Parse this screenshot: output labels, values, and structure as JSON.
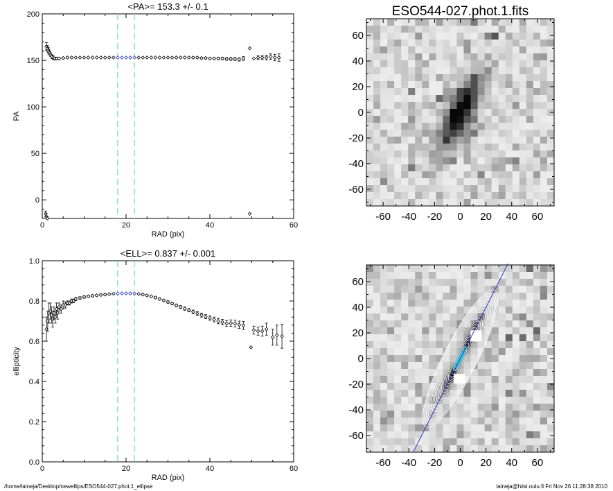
{
  "footer": {
    "path": "/home/laineja/Desktop/newellips/ESO544-027.phot.1_ellipse",
    "stamp": "laineja@hiisi.oulu.fi  Fri Nov 26 11:28:38 2010"
  },
  "colors": {
    "axes": "#000000",
    "marker": "#000000",
    "fit_marker": "#1f2fbf",
    "guide": "#7fe0e6",
    "contour": "#ffffff",
    "core": "#3ec8d8",
    "pa_line": "#3333cc"
  },
  "chart_data": [
    {
      "type": "scatter",
      "title": "<PA>= 153.3 +/-   0.1",
      "xlabel": "RAD (pix)",
      "ylabel": "PA",
      "xlim": [
        0,
        60
      ],
      "ylim": [
        -20,
        200
      ],
      "xticks": [
        "0",
        "20",
        "40",
        "60"
      ],
      "yticks": [
        "0",
        "50",
        "100",
        "150",
        "200"
      ],
      "guides_x": [
        18,
        22
      ],
      "series": [
        {
          "points": [
            [
              1.0,
              165,
              4
            ],
            [
              1.2,
              163,
              3
            ],
            [
              1.4,
              161,
              3
            ],
            [
              1.6,
              159,
              3
            ],
            [
              1.8,
              158,
              2
            ],
            [
              2.0,
              156,
              2
            ],
            [
              2.3,
              154,
              2
            ],
            [
              2.6,
              153,
              2
            ],
            [
              3.0,
              152,
              1.5
            ],
            [
              3.5,
              152,
              1
            ],
            [
              4,
              152,
              1
            ],
            [
              5,
              152.5,
              1
            ],
            [
              6,
              153,
              0.8
            ],
            [
              7,
              153,
              0.6
            ],
            [
              8,
              153,
              0.5
            ],
            [
              9,
              153,
              0.5
            ],
            [
              10,
              153,
              0.4
            ],
            [
              11,
              153,
              0.4
            ],
            [
              12,
              153,
              0.4
            ],
            [
              13,
              153,
              0.3
            ],
            [
              14,
              153,
              0.3
            ],
            [
              15,
              153,
              0.3
            ],
            [
              16,
              153,
              0.3
            ],
            [
              17,
              153,
              0.3
            ],
            [
              18,
              153,
              0.2
            ],
            [
              19,
              153,
              0.2
            ],
            [
              20,
              153,
              0.2
            ],
            [
              21,
              153,
              0.2
            ],
            [
              22,
              153,
              0.2
            ],
            [
              23,
              153,
              0.3
            ],
            [
              24,
              153,
              0.3
            ],
            [
              25,
              153,
              0.3
            ],
            [
              26,
              153,
              0.4
            ],
            [
              27,
              153,
              0.4
            ],
            [
              28,
              153,
              0.4
            ],
            [
              29,
              153,
              0.5
            ],
            [
              30,
              153,
              0.5
            ],
            [
              31,
              153,
              0.5
            ],
            [
              32,
              153,
              0.6
            ],
            [
              33,
              153,
              0.6
            ],
            [
              34,
              153,
              0.7
            ],
            [
              35,
              153,
              0.7
            ],
            [
              36,
              153,
              0.8
            ],
            [
              37,
              153,
              0.8
            ],
            [
              38,
              152.5,
              0.9
            ],
            [
              39,
              152.5,
              1
            ],
            [
              40,
              152,
              1
            ],
            [
              41,
              152,
              1
            ],
            [
              42,
              152,
              1.2
            ],
            [
              43,
              152,
              1.3
            ],
            [
              44,
              151.5,
              1.4
            ],
            [
              45,
              151.5,
              1.5
            ],
            [
              46,
              151.5,
              1.6
            ],
            [
              47,
              151,
              1.8
            ],
            [
              48,
              152,
              2
            ],
            [
              49.5,
              163,
              0
            ],
            [
              50.5,
              152,
              0
            ],
            [
              51.5,
              153,
              2
            ],
            [
              52.5,
              153,
              2
            ],
            [
              53.5,
              153,
              2.5
            ],
            [
              54.5,
              154,
              3
            ],
            [
              55.5,
              153,
              3.5
            ],
            [
              56.5,
              153,
              4
            ],
            [
              0.8,
              -15,
              3
            ],
            [
              1.0,
              -18,
              3
            ],
            [
              1.2,
              -20,
              2
            ],
            [
              49.5,
              -15,
              0
            ]
          ],
          "fit_range": [
            18,
            22
          ]
        }
      ]
    },
    {
      "type": "scatter",
      "title": "<ELL>= 0.837 +/-  0.001",
      "xlabel": "RAD (pix)",
      "ylabel": "ellipticity",
      "xlim": [
        0,
        60
      ],
      "ylim": [
        0,
        1
      ],
      "xticks": [
        "0",
        "20",
        "40",
        "60"
      ],
      "yticks": [
        "0.0",
        "0.2",
        "0.4",
        "0.6",
        "0.8",
        "1.0"
      ],
      "guides_x": [
        18,
        22
      ],
      "series": [
        {
          "points": [
            [
              1.0,
              0.66,
              0.06
            ],
            [
              1.3,
              0.7,
              0.05
            ],
            [
              1.6,
              0.74,
              0.05
            ],
            [
              1.9,
              0.75,
              0.04
            ],
            [
              2.2,
              0.73,
              0.04
            ],
            [
              2.5,
              0.71,
              0.04
            ],
            [
              2.8,
              0.74,
              0.03
            ],
            [
              3.1,
              0.72,
              0.03
            ],
            [
              3.4,
              0.76,
              0.03
            ],
            [
              3.7,
              0.74,
              0.03
            ],
            [
              4.0,
              0.77,
              0.02
            ],
            [
              4.5,
              0.76,
              0.02
            ],
            [
              5.0,
              0.78,
              0.02
            ],
            [
              5.5,
              0.78,
              0.015
            ],
            [
              6,
              0.79,
              0.01
            ],
            [
              6.5,
              0.79,
              0.01
            ],
            [
              7,
              0.8,
              0.01
            ],
            [
              7.5,
              0.8,
              0.008
            ],
            [
              8,
              0.81,
              0.008
            ],
            [
              9,
              0.815,
              0.006
            ],
            [
              10,
              0.82,
              0.006
            ],
            [
              11,
              0.823,
              0.005
            ],
            [
              12,
              0.826,
              0.005
            ],
            [
              13,
              0.828,
              0.004
            ],
            [
              14,
              0.83,
              0.004
            ],
            [
              15,
              0.832,
              0.004
            ],
            [
              16,
              0.834,
              0.003
            ],
            [
              17,
              0.836,
              0.003
            ],
            [
              18,
              0.837,
              0.003
            ],
            [
              19,
              0.838,
              0.003
            ],
            [
              20,
              0.838,
              0.003
            ],
            [
              21,
              0.838,
              0.003
            ],
            [
              22,
              0.837,
              0.003
            ],
            [
              23,
              0.835,
              0.003
            ],
            [
              24,
              0.832,
              0.004
            ],
            [
              25,
              0.828,
              0.004
            ],
            [
              26,
              0.823,
              0.004
            ],
            [
              27,
              0.817,
              0.005
            ],
            [
              28,
              0.81,
              0.005
            ],
            [
              29,
              0.803,
              0.005
            ],
            [
              30,
              0.795,
              0.006
            ],
            [
              31,
              0.787,
              0.006
            ],
            [
              32,
              0.778,
              0.007
            ],
            [
              33,
              0.77,
              0.007
            ],
            [
              34,
              0.762,
              0.008
            ],
            [
              35,
              0.754,
              0.008
            ],
            [
              36,
              0.746,
              0.009
            ],
            [
              37,
              0.738,
              0.009
            ],
            [
              38,
              0.73,
              0.01
            ],
            [
              39,
              0.722,
              0.01
            ],
            [
              40,
              0.715,
              0.011
            ],
            [
              41,
              0.708,
              0.012
            ],
            [
              42,
              0.7,
              0.013
            ],
            [
              43,
              0.695,
              0.014
            ],
            [
              44,
              0.688,
              0.015
            ],
            [
              45,
              0.69,
              0.016
            ],
            [
              46,
              0.688,
              0.017
            ],
            [
              47,
              0.682,
              0.018
            ],
            [
              48,
              0.678,
              0.02
            ],
            [
              49.8,
              0.57,
              0
            ],
            [
              50.5,
              0.655,
              0.02
            ],
            [
              51.5,
              0.65,
              0.02
            ],
            [
              52.5,
              0.65,
              0.025
            ],
            [
              53.5,
              0.66,
              0.03
            ],
            [
              55,
              0.62,
              0.04
            ],
            [
              56,
              0.63,
              0.05
            ],
            [
              57.2,
              0.625,
              0.06
            ]
          ],
          "fit_range": [
            18,
            22
          ]
        }
      ]
    },
    {
      "type": "heatmap",
      "title": "ESO544-027.phot.1.fits",
      "xlim": [
        -73,
        73
      ],
      "ylim": [
        -73,
        73
      ],
      "xticks": [
        "-60",
        "-40",
        "-20",
        "0",
        "20",
        "40",
        "60"
      ],
      "yticks": [
        "-60",
        "-40",
        "-20",
        "0",
        "20",
        "40",
        "60"
      ],
      "galaxy_pa_deg": 153.3,
      "galaxy_ellipticity": 0.837
    },
    {
      "type": "heatmap",
      "title": "",
      "xlim": [
        -73,
        73
      ],
      "ylim": [
        -73,
        73
      ],
      "xticks": [
        "-60",
        "-40",
        "-20",
        "0",
        "20",
        "40",
        "60"
      ],
      "yticks": [
        "-60",
        "-40",
        "-20",
        "0",
        "20",
        "40",
        "60"
      ],
      "galaxy_pa_deg": 153.3,
      "galaxy_ellipticity": 0.837,
      "contour_count": 22
    }
  ]
}
